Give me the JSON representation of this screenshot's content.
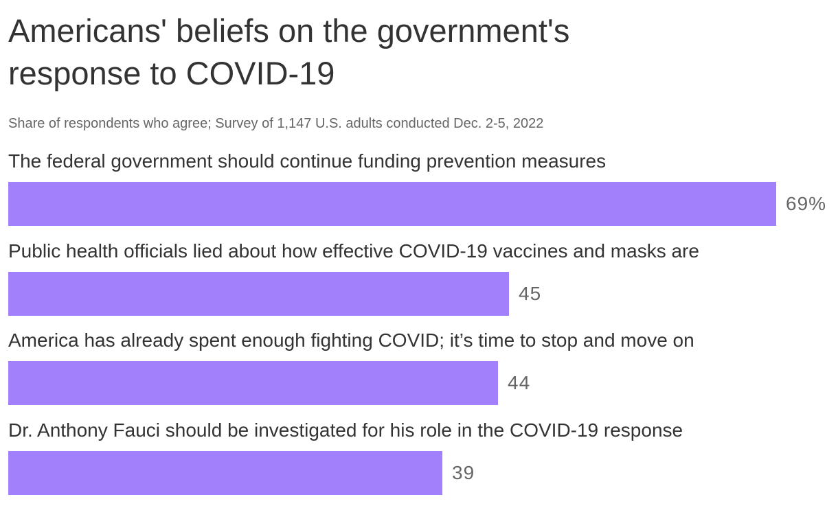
{
  "title": "Americans' beliefs on the government's response to COVID-19",
  "subtitle": "Share of respondents who agree; Survey of 1,147 U.S. adults conducted Dec. 2-5, 2022",
  "colors": {
    "bar": "#a27ffb",
    "text": "#333333",
    "value_text": "#666666"
  },
  "chart_data": {
    "type": "bar",
    "orientation": "horizontal",
    "title": "Americans' beliefs on the government's response to COVID-19",
    "subtitle": "Share of respondents who agree; Survey of 1,147 U.S. adults conducted Dec. 2-5, 2022",
    "categories": [
      "The federal government should continue funding prevention measures",
      "Public health officials lied about how effective COVID-19 vaccines and masks are",
      "America has already spent enough fighting COVID; it’s time to stop and move on",
      "Dr. Anthony Fauci should be investigated for his role in the COVID-19 response"
    ],
    "values": [
      69,
      45,
      44,
      39
    ],
    "value_labels": [
      "69%",
      "45",
      "44",
      "39"
    ],
    "unit": "%",
    "xlim": [
      0,
      69
    ],
    "grid": false,
    "legend": "none"
  }
}
